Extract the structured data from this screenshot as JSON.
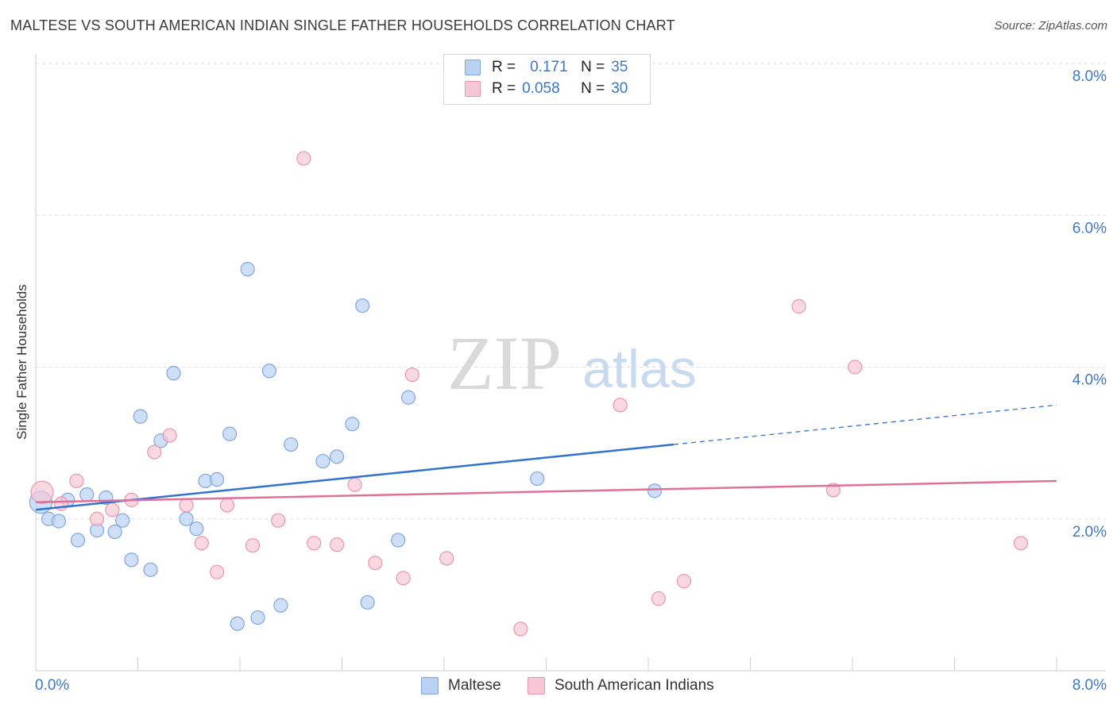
{
  "title": "MALTESE VS SOUTH AMERICAN INDIAN SINGLE FATHER HOUSEHOLDS CORRELATION CHART",
  "source": "Source: ZipAtlas.com",
  "watermark": {
    "zip": "ZIP",
    "atlas": "atlas"
  },
  "legend": {
    "r_label": "R =",
    "n_label": "N =",
    "rows": [
      {
        "name": "Maltese",
        "r": "0.171",
        "n": "35"
      },
      {
        "name": "South American Indians",
        "r": "0.058",
        "n": "30"
      }
    ]
  },
  "colors": {
    "maltese_fill": "#b9d2f3",
    "maltese_stroke": "#7fa7df",
    "maltese_line": "#2f72d0",
    "sa_fill": "#f8c7d5",
    "sa_stroke": "#e996af",
    "sa_line": "#e0709a",
    "axis_text": "#3b78c8",
    "grid": "#dddddd"
  },
  "chart_data": {
    "type": "scatter",
    "title": "MALTESE VS SOUTH AMERICAN INDIAN SINGLE FATHER HOUSEHOLDS CORRELATION CHART",
    "xlabel": "",
    "ylabel": "Single Father Households",
    "xlim": [
      0,
      8
    ],
    "ylim": [
      0,
      8
    ],
    "x_tick_labels": [
      "0.0%",
      "8.0%"
    ],
    "y_ticks": [
      2,
      4,
      6,
      8
    ],
    "y_tick_labels": [
      "2.0%",
      "4.0%",
      "6.0%",
      "8.0%"
    ],
    "grid": true,
    "legend_position": "top-center",
    "series": [
      {
        "name": "Maltese",
        "r": 0.171,
        "n": 35,
        "points": [
          [
            0.04,
            2.22
          ],
          [
            0.1,
            2.0
          ],
          [
            0.18,
            1.97
          ],
          [
            0.25,
            2.25
          ],
          [
            0.33,
            1.72
          ],
          [
            0.4,
            2.32
          ],
          [
            0.48,
            1.85
          ],
          [
            0.55,
            2.28
          ],
          [
            0.62,
            1.83
          ],
          [
            0.68,
            1.98
          ],
          [
            0.75,
            1.46
          ],
          [
            0.82,
            3.35
          ],
          [
            0.9,
            1.33
          ],
          [
            0.98,
            3.03
          ],
          [
            1.08,
            3.92
          ],
          [
            1.18,
            2.0
          ],
          [
            1.26,
            1.87
          ],
          [
            1.33,
            2.5
          ],
          [
            1.42,
            2.52
          ],
          [
            1.52,
            3.12
          ],
          [
            1.58,
            0.62
          ],
          [
            1.66,
            5.29
          ],
          [
            1.74,
            0.7
          ],
          [
            1.83,
            3.95
          ],
          [
            1.92,
            0.86
          ],
          [
            2.0,
            2.98
          ],
          [
            2.25,
            2.76
          ],
          [
            2.36,
            2.82
          ],
          [
            2.48,
            3.25
          ],
          [
            2.56,
            4.81
          ],
          [
            2.6,
            0.9
          ],
          [
            2.84,
            1.72
          ],
          [
            2.92,
            3.6
          ],
          [
            3.93,
            2.53
          ],
          [
            4.85,
            2.37
          ]
        ],
        "trend": {
          "x": [
            0,
            5.0
          ],
          "y": [
            2.12,
            2.98
          ]
        },
        "trend_dashed": {
          "x": [
            5.0,
            8.0
          ],
          "y": [
            2.98,
            3.5
          ]
        }
      },
      {
        "name": "South American Indians",
        "r": 0.058,
        "n": 30,
        "points": [
          [
            0.05,
            2.35
          ],
          [
            0.2,
            2.2
          ],
          [
            0.32,
            2.5
          ],
          [
            0.48,
            2.0
          ],
          [
            0.6,
            2.12
          ],
          [
            0.75,
            2.25
          ],
          [
            0.93,
            2.88
          ],
          [
            1.05,
            3.1
          ],
          [
            1.18,
            2.18
          ],
          [
            1.3,
            1.68
          ],
          [
            1.42,
            1.3
          ],
          [
            1.5,
            2.18
          ],
          [
            1.7,
            1.65
          ],
          [
            1.9,
            1.98
          ],
          [
            2.1,
            6.75
          ],
          [
            2.18,
            1.68
          ],
          [
            2.36,
            1.66
          ],
          [
            2.5,
            2.45
          ],
          [
            2.66,
            1.42
          ],
          [
            2.88,
            1.22
          ],
          [
            2.95,
            3.9
          ],
          [
            3.22,
            1.48
          ],
          [
            3.8,
            0.55
          ],
          [
            4.58,
            3.5
          ],
          [
            4.88,
            0.95
          ],
          [
            5.08,
            1.18
          ],
          [
            5.98,
            4.8
          ],
          [
            6.25,
            2.38
          ],
          [
            6.42,
            4.0
          ],
          [
            7.72,
            1.68
          ]
        ],
        "trend": {
          "x": [
            0,
            8.0
          ],
          "y": [
            2.22,
            2.5
          ]
        }
      }
    ]
  }
}
